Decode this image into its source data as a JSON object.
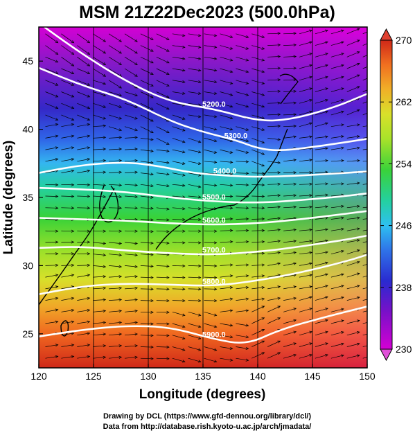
{
  "title": "MSM 21Z22Dec2023 (500.0hPa)",
  "xlabel": "Longitude (degrees)",
  "ylabel": "Latitude  (degrees)",
  "credit_line1": "Drawing by DCL (https://www.gfd-dennou.org/library/dcl/)",
  "credit_line2": "Data from http://database.rish.kyoto-u.ac.jp/arch/jmadata/",
  "chart_data": {
    "type": "heatmap",
    "variable": "temperature (filled) with height contours and wind streamlines",
    "xlim": [
      120,
      150
    ],
    "ylim": [
      22.5,
      47.5
    ],
    "x_ticks": [
      "120",
      "125",
      "130",
      "135",
      "140",
      "145",
      "150"
    ],
    "y_ticks": [
      "25",
      "30",
      "35",
      "40",
      "45"
    ],
    "colorbar": {
      "min": 230,
      "max": 270,
      "ticks": [
        "270",
        "262",
        "254",
        "246",
        "238",
        "230"
      ],
      "colors": [
        "#d400d4",
        "#7a10c8",
        "#2a2ad0",
        "#2f73e8",
        "#2ec0f0",
        "#24d0a0",
        "#3ad23a",
        "#a8e22a",
        "#d8e02a",
        "#f0b028",
        "#f07020",
        "#e03820",
        "#c81818"
      ]
    },
    "contours": [
      {
        "label": "5200.0",
        "points": [
          [
            120.5,
            47.5
          ],
          [
            124,
            45.5
          ],
          [
            128,
            43.5
          ],
          [
            132,
            42
          ],
          [
            136,
            41.5
          ],
          [
            140,
            40.6
          ],
          [
            143,
            40.7
          ],
          [
            147,
            41.6
          ],
          [
            150,
            42.6
          ]
        ]
      },
      {
        "label": "5300.0",
        "points": [
          [
            120,
            44.5
          ],
          [
            124,
            43.2
          ],
          [
            128,
            42.2
          ],
          [
            132,
            40.6
          ],
          [
            135,
            39.8
          ],
          [
            138,
            39.2
          ],
          [
            140,
            38.6
          ],
          [
            142,
            38.4
          ],
          [
            146,
            38.8
          ],
          [
            150,
            39.3
          ]
        ]
      },
      {
        "label": "5400.0",
        "points": [
          [
            120,
            36.8
          ],
          [
            124,
            37.4
          ],
          [
            128,
            37.6
          ],
          [
            131,
            37.3
          ],
          [
            134,
            36.8
          ],
          [
            137,
            36.6
          ],
          [
            140,
            36.5
          ],
          [
            144,
            36.6
          ],
          [
            148,
            36.8
          ],
          [
            150,
            36.9
          ]
        ]
      },
      {
        "label": "5500.0",
        "points": [
          [
            120,
            35.7
          ],
          [
            124,
            35.6
          ],
          [
            128,
            35.4
          ],
          [
            132,
            35
          ],
          [
            136,
            34.7
          ],
          [
            140,
            34.6
          ],
          [
            144,
            34.8
          ],
          [
            148,
            35.1
          ],
          [
            150,
            35.3
          ]
        ]
      },
      {
        "label": "5600.0",
        "points": [
          [
            120,
            33.5
          ],
          [
            124,
            33.4
          ],
          [
            128,
            33.3
          ],
          [
            132,
            33.1
          ],
          [
            136,
            33
          ],
          [
            140,
            33.1
          ],
          [
            144,
            33.4
          ],
          [
            148,
            33.8
          ],
          [
            150,
            34
          ]
        ]
      },
      {
        "label": "5700.0",
        "points": [
          [
            120,
            31.3
          ],
          [
            124,
            31.4
          ],
          [
            128,
            31.1
          ],
          [
            132,
            30.9
          ],
          [
            136,
            30.8
          ],
          [
            140,
            31
          ],
          [
            144,
            31.4
          ],
          [
            148,
            31.9
          ],
          [
            150,
            32.2
          ]
        ]
      },
      {
        "label": "5800.0",
        "points": [
          [
            120,
            27.9
          ],
          [
            124,
            28.5
          ],
          [
            128,
            28.7
          ],
          [
            132,
            28.6
          ],
          [
            136,
            28.5
          ],
          [
            140,
            28.9
          ],
          [
            144,
            29.5
          ],
          [
            148,
            30.3
          ],
          [
            150,
            30.8
          ]
        ]
      },
      {
        "label": "5900.0",
        "points": [
          [
            120,
            24.8
          ],
          [
            124,
            25.3
          ],
          [
            128,
            25.6
          ],
          [
            132,
            25.5
          ],
          [
            136,
            24.6
          ],
          [
            139,
            24.2
          ],
          [
            142,
            25.3
          ],
          [
            146,
            26.2
          ],
          [
            150,
            27
          ]
        ]
      }
    ]
  }
}
